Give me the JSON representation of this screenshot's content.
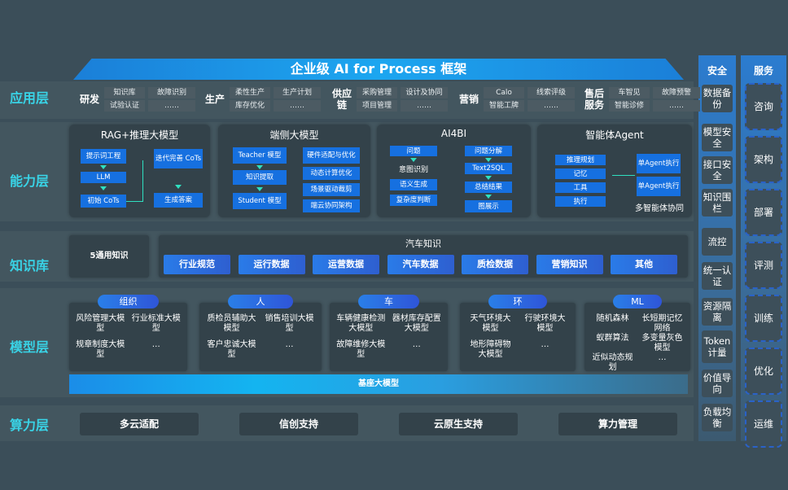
{
  "title": "企业级 AI for Process 框架",
  "rows": {
    "app": "应用层",
    "ability": "能力层",
    "knowledge": "知识库",
    "model": "模型层",
    "compute": "算力层"
  },
  "app_groups": [
    {
      "name": "研发",
      "items": [
        "知识库",
        "故障识别",
        "试验认证",
        "……"
      ]
    },
    {
      "name": "生产",
      "items": [
        "柔性生产",
        "生产计划",
        "库存优化",
        "……"
      ]
    },
    {
      "name": "供应链",
      "items": [
        "采购管理",
        "设计及协同",
        "项目管理",
        "……"
      ]
    },
    {
      "name": "营销",
      "items": [
        "Calo",
        "线索评级",
        "智能工牌",
        "……"
      ]
    },
    {
      "name": "售后服务",
      "items": [
        "车智见",
        "故障预警",
        "智能诊修",
        "……"
      ]
    }
  ],
  "ability": {
    "rag": {
      "title": "RAG+推理大模型",
      "b1": "提示词工程",
      "b2": "LLM",
      "b3": "初始 CoTs",
      "b4": "迭代完善 CoTs",
      "b5": "生成答案"
    },
    "edge": {
      "title": "端侧大模型",
      "b1": "Teacher 模型",
      "b2": "知识提取",
      "b3": "Student 模型",
      "r1": "硬件适配与优化",
      "r2": "动态计算优化",
      "r3": "场景驱动裁剪",
      "r4": "端云协同架构"
    },
    "ai4bi": {
      "title": "AI4BI",
      "l1": "问题",
      "l2": "意图识别",
      "l3": "语义生成",
      "l4": "复杂度判断",
      "r1": "问题分解",
      "r2": "Text2SQL",
      "r3": "总结结果",
      "r4": "图展示"
    },
    "agent": {
      "title": "智能体Agent",
      "l1": "推理规划",
      "l2": "记忆",
      "l3": "工具",
      "l4": "执行",
      "r1": "单Agent执行",
      "r2": "单Agent执行",
      "note": "多智能体协同"
    }
  },
  "knowledge": {
    "general": "5通用知识",
    "auto_title": "汽车知识",
    "items": [
      "行业规范",
      "运行数据",
      "运营数据",
      "汽车数据",
      "质检数据",
      "营销知识",
      "其他"
    ]
  },
  "models": [
    {
      "label": "组织",
      "items": [
        "风险管理大模型",
        "行业标准大模型",
        "规章制度大模型",
        "…"
      ]
    },
    {
      "label": "人",
      "items": [
        "质检员辅助大模型",
        "销售培训大模型",
        "客户忠诚大模型",
        "…"
      ]
    },
    {
      "label": "车",
      "items": [
        "车辆健康检测大模型",
        "器材库存配置大模型",
        "故障维修大模型",
        "…"
      ]
    },
    {
      "label": "环",
      "items": [
        "天气环境大模型",
        "行驶环境大模型",
        "地形障碍物大模型",
        "…"
      ]
    },
    {
      "label": "ML",
      "items": [
        "随机森林",
        "长短期记忆网络",
        "蚁群算法",
        "多变量灰色模型",
        "近似动态规划",
        "…"
      ]
    }
  ],
  "base_model": "基座大模型",
  "compute": [
    "多云适配",
    "信创支持",
    "云原生支持",
    "算力管理"
  ],
  "security": {
    "title": "安全",
    "items": [
      "数据备份",
      "模型安全",
      "接口安全",
      "知识围栏",
      "流控",
      "统一认证",
      "资源隔离",
      "Token计量",
      "价值导向",
      "负载均衡"
    ]
  },
  "services": {
    "title": "服务",
    "items": [
      "咨询",
      "架构",
      "部署",
      "评测",
      "训练",
      "优化",
      "运维"
    ]
  },
  "colors": {
    "accent": "#1670e0",
    "label": "#39d3e6",
    "background": "#3b4e59"
  }
}
